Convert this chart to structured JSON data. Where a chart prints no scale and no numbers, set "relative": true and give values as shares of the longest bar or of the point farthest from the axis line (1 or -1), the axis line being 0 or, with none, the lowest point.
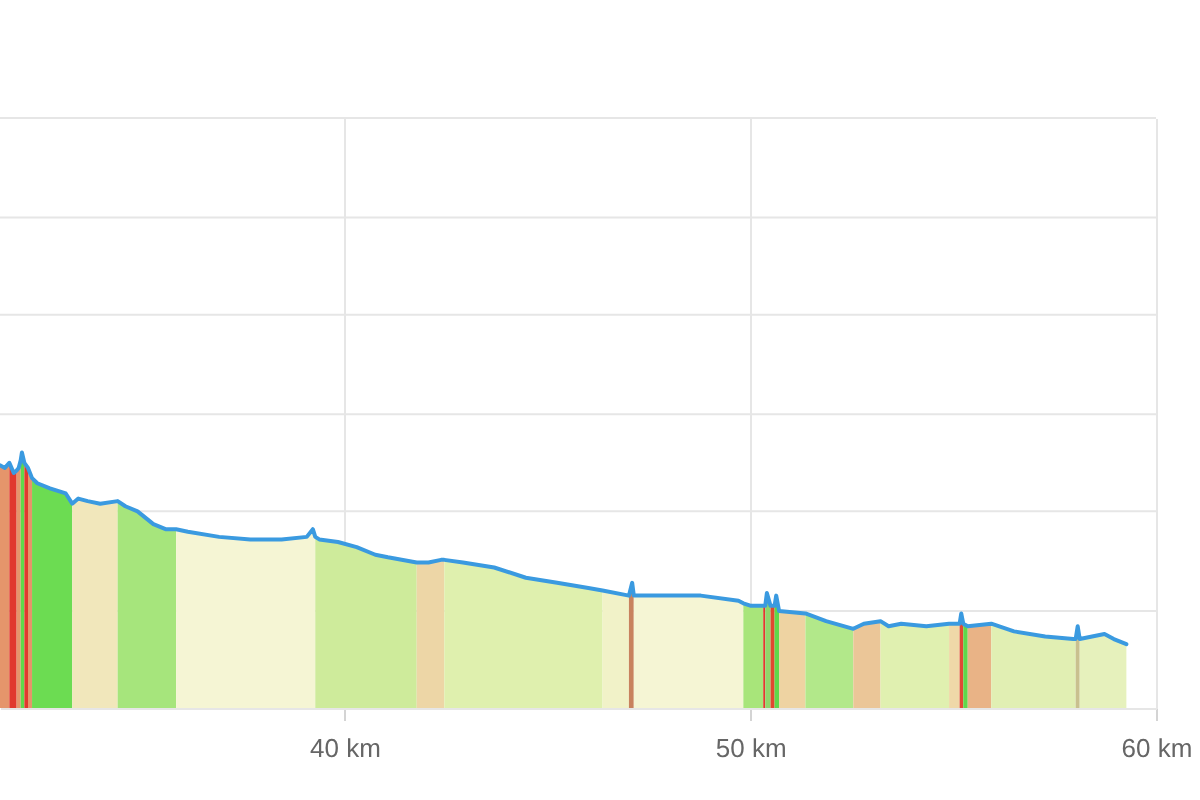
{
  "chart_data": {
    "type": "area",
    "relative": true,
    "grid": "x",
    "xlim": [
      31.51,
      60
    ],
    "xticks": [
      {
        "value": 40,
        "label": "40 km"
      },
      {
        "value": 50,
        "label": "50 km"
      },
      {
        "value": 60,
        "label": "60 km"
      }
    ],
    "ref_lines": [
      {
        "axis": "y",
        "value": 0.38,
        "color": "#e6e6e6"
      },
      {
        "axis": "y",
        "value": 0.77,
        "color": "#e6e6e6"
      },
      {
        "axis": "y",
        "value": 1.15,
        "color": "#e6e6e6"
      },
      {
        "axis": "y",
        "value": 1.54,
        "color": "#e6e6e6"
      },
      {
        "axis": "y",
        "value": 1.92,
        "color": "#e6e6e6"
      },
      {
        "axis": "y",
        "value": 2.31,
        "color": "#e6e6e6"
      }
    ],
    "series": [
      {
        "type": "line",
        "color": "#3a9ae0",
        "x": [
          31.51,
          31.63,
          31.74,
          31.85,
          31.92,
          31.97,
          32.02,
          32.05,
          32.11,
          32.2,
          32.3,
          32.43,
          32.74,
          33.13,
          33.29,
          33.44,
          33.67,
          33.98,
          34.41,
          34.6,
          34.9,
          35.29,
          35.59,
          35.85,
          36.14,
          36.91,
          37.68,
          38.45,
          39.07,
          39.22,
          39.28,
          39.38,
          39.84,
          40.3,
          40.76,
          41.07,
          41.78,
          42.07,
          42.38,
          42.46,
          42.92,
          43.69,
          44.47,
          45.24,
          46.01,
          46.36,
          47.01,
          47.09,
          47.13,
          47.86,
          48.78,
          49.71,
          49.83,
          50.02,
          50.32,
          50.37,
          50.41,
          50.5,
          50.6,
          50.64,
          50.71,
          51.36,
          51.87,
          52.54,
          52.8,
          53.21,
          53.41,
          53.72,
          54.34,
          54.9,
          55.16,
          55.2,
          55.25,
          55.36,
          55.94,
          56.5,
          57.27,
          57.96,
          58.02,
          58.07,
          58.12,
          58.73,
          58.96,
          59.27
        ],
        "values": [
          0.95,
          0.94,
          0.96,
          0.92,
          0.93,
          0.94,
          0.97,
          1.0,
          0.96,
          0.94,
          0.9,
          0.88,
          0.86,
          0.84,
          0.8,
          0.82,
          0.81,
          0.8,
          0.81,
          0.79,
          0.77,
          0.72,
          0.7,
          0.7,
          0.69,
          0.67,
          0.66,
          0.66,
          0.67,
          0.7,
          0.67,
          0.66,
          0.65,
          0.63,
          0.6,
          0.59,
          0.57,
          0.57,
          0.58,
          0.58,
          0.57,
          0.55,
          0.51,
          0.49,
          0.47,
          0.46,
          0.44,
          0.49,
          0.44,
          0.44,
          0.44,
          0.42,
          0.41,
          0.4,
          0.4,
          0.4,
          0.45,
          0.4,
          0.4,
          0.44,
          0.38,
          0.37,
          0.34,
          0.31,
          0.33,
          0.34,
          0.32,
          0.33,
          0.32,
          0.33,
          0.33,
          0.37,
          0.33,
          0.32,
          0.33,
          0.3,
          0.28,
          0.27,
          0.27,
          0.32,
          0.27,
          0.29,
          0.27,
          0.25
        ]
      },
      {
        "color": "#e5956b",
        "x": [
          31.51,
          31.63,
          31.74
        ],
        "values": [
          0.95,
          0.94,
          0.96
        ]
      },
      {
        "color": "#e0392e",
        "x": [
          31.74,
          31.85,
          31.92
        ],
        "values": [
          0.96,
          0.92,
          0.93
        ]
      },
      {
        "color": "#e5956b",
        "x": [
          31.92,
          31.97,
          32.02
        ],
        "values": [
          0.93,
          0.94,
          0.97
        ]
      },
      {
        "color": "#5fd84a",
        "x": [
          32.02,
          32.05,
          32.11
        ],
        "values": [
          0.97,
          1.0,
          0.96
        ]
      },
      {
        "color": "#e0392e",
        "x": [
          32.11,
          32.2
        ],
        "values": [
          0.96,
          0.94
        ]
      },
      {
        "color": "#e5956b",
        "x": [
          32.2,
          32.3
        ],
        "values": [
          0.94,
          0.9
        ]
      },
      {
        "color": "#6cdc52",
        "x": [
          32.3,
          32.43,
          32.74,
          33.13,
          33.29
        ],
        "values": [
          0.9,
          0.88,
          0.86,
          0.84,
          0.8
        ]
      },
      {
        "color": "#f1e7bb",
        "x": [
          33.29,
          33.44,
          33.67,
          33.98,
          34.41
        ],
        "values": [
          0.8,
          0.82,
          0.81,
          0.8,
          0.81
        ]
      },
      {
        "color": "#a6e57c",
        "x": [
          34.41,
          34.6,
          34.9,
          35.29,
          35.59,
          35.85
        ],
        "values": [
          0.81,
          0.79,
          0.77,
          0.72,
          0.7,
          0.7
        ]
      },
      {
        "color": "#f5f5d4",
        "x": [
          35.85,
          36.14,
          36.91,
          37.68,
          38.45,
          39.07,
          39.22,
          39.28
        ],
        "values": [
          0.7,
          0.69,
          0.67,
          0.66,
          0.66,
          0.67,
          0.7,
          0.67
        ]
      },
      {
        "color": "#ceeb9b",
        "x": [
          39.28,
          39.38,
          39.84,
          40.3,
          40.76,
          41.07,
          41.78
        ],
        "values": [
          0.67,
          0.66,
          0.65,
          0.63,
          0.6,
          0.59,
          0.57
        ]
      },
      {
        "color": "#edd6a6",
        "x": [
          41.78,
          42.07,
          42.38,
          42.46
        ],
        "values": [
          0.57,
          0.57,
          0.58,
          0.58
        ]
      },
      {
        "color": "#dff0ae",
        "x": [
          42.46,
          42.92,
          43.69,
          44.47,
          45.24,
          46.01,
          46.36
        ],
        "values": [
          0.58,
          0.57,
          0.55,
          0.51,
          0.49,
          0.47,
          0.46
        ]
      },
      {
        "color": "#f1f2c8",
        "x": [
          46.36,
          47.01
        ],
        "values": [
          0.46,
          0.44
        ]
      },
      {
        "color": "#c8825e",
        "x": [
          47.01,
          47.09,
          47.13
        ],
        "values": [
          0.44,
          0.49,
          0.44
        ]
      },
      {
        "color": "#f5f5d4",
        "x": [
          47.13,
          47.86,
          48.78,
          49.71,
          49.83
        ],
        "values": [
          0.44,
          0.44,
          0.44,
          0.42,
          0.41
        ]
      },
      {
        "color": "#a8e57a",
        "x": [
          49.83,
          50.02,
          50.32
        ],
        "values": [
          0.41,
          0.4,
          0.4
        ]
      },
      {
        "color": "#e0392e",
        "x": [
          50.32,
          50.37
        ],
        "values": [
          0.4,
          0.4
        ]
      },
      {
        "color": "#8fd66a",
        "x": [
          50.37,
          50.41,
          50.5
        ],
        "values": [
          0.4,
          0.45,
          0.4
        ]
      },
      {
        "color": "#e0482f",
        "x": [
          50.5,
          50.6
        ],
        "values": [
          0.4,
          0.4
        ]
      },
      {
        "color": "#5fd84a",
        "x": [
          50.6,
          50.64,
          50.71
        ],
        "values": [
          0.4,
          0.44,
          0.38
        ]
      },
      {
        "color": "#eed3a2",
        "x": [
          50.71,
          51.36
        ],
        "values": [
          0.38,
          0.37
        ]
      },
      {
        "color": "#b2e88a",
        "x": [
          51.36,
          51.87,
          52.54
        ],
        "values": [
          0.37,
          0.34,
          0.31
        ]
      },
      {
        "color": "#ebc698",
        "x": [
          52.54,
          52.8,
          53.21
        ],
        "values": [
          0.31,
          0.33,
          0.34
        ]
      },
      {
        "color": "#e0f0b0",
        "x": [
          53.21,
          53.41,
          53.72,
          54.34,
          54.9
        ],
        "values": [
          0.34,
          0.32,
          0.33,
          0.32,
          0.33
        ]
      },
      {
        "color": "#efd8a8",
        "x": [
          54.9,
          55.16
        ],
        "values": [
          0.33,
          0.33
        ]
      },
      {
        "color": "#e04a35",
        "x": [
          55.16,
          55.2,
          55.25
        ],
        "values": [
          0.33,
          0.37,
          0.33
        ]
      },
      {
        "color": "#5fd84a",
        "x": [
          55.25,
          55.36
        ],
        "values": [
          0.33,
          0.32
        ]
      },
      {
        "color": "#e9b386",
        "x": [
          55.36,
          55.94
        ],
        "values": [
          0.32,
          0.33
        ]
      },
      {
        "color": "#e1efb3",
        "x": [
          55.94,
          56.5,
          57.27,
          57.96,
          58.02
        ],
        "values": [
          0.33,
          0.3,
          0.28,
          0.27,
          0.27
        ]
      },
      {
        "color": "#c9c08f",
        "x": [
          58.02,
          58.07,
          58.12
        ],
        "values": [
          0.27,
          0.32,
          0.27
        ]
      },
      {
        "color": "#e6f1bc",
        "x": [
          58.12,
          58.73,
          58.96,
          59.27
        ],
        "values": [
          0.27,
          0.29,
          0.27,
          0.25
        ]
      }
    ]
  }
}
